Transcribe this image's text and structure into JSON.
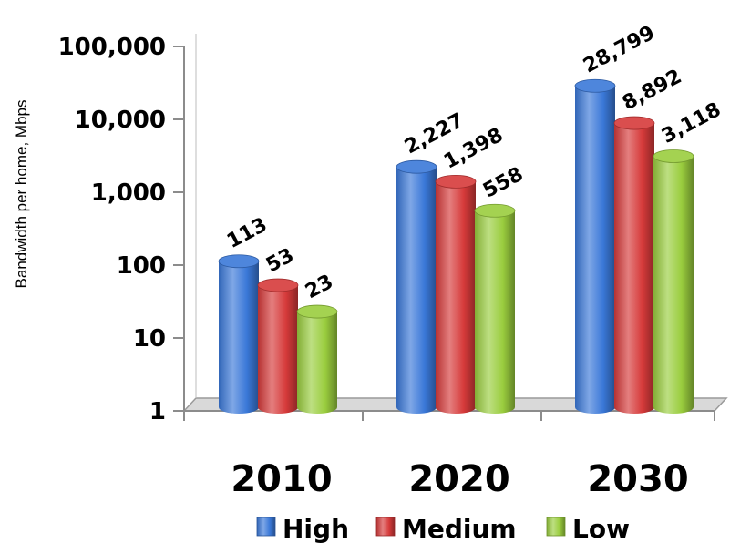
{
  "chart_data": {
    "type": "bar",
    "scale": "log",
    "ylabel": "Bandwidth per home, Mbps",
    "ylim": [
      1,
      100000
    ],
    "yticks": [
      1,
      10,
      100,
      1000,
      10000,
      100000
    ],
    "ytick_labels": [
      "1",
      "10",
      "100",
      "1,000",
      "10,000",
      "100,000"
    ],
    "categories": [
      "2010",
      "2020",
      "2030"
    ],
    "series": [
      {
        "name": "High",
        "color": "#3a78d8",
        "values": [
          113,
          2227,
          28799
        ],
        "labels": [
          "113",
          "2,227",
          "28,799"
        ]
      },
      {
        "name": "Medium",
        "color": "#d63a3a",
        "values": [
          53,
          1398,
          8892
        ],
        "labels": [
          "53",
          "1,398",
          "8,892"
        ]
      },
      {
        "name": "Low",
        "color": "#9acd3e",
        "values": [
          23,
          558,
          3118
        ],
        "labels": [
          "23",
          "558",
          "3,118"
        ]
      }
    ],
    "legend": "bottom",
    "grid": false
  }
}
